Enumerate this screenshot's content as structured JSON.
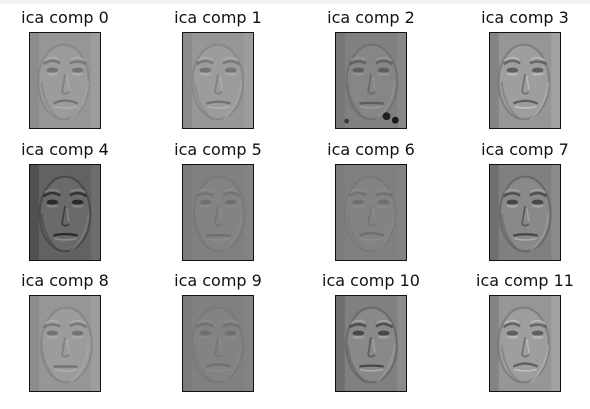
{
  "figure": {
    "panels": [
      {
        "title": "ica comp 0",
        "tone": "light",
        "contrast": "medium",
        "artifacts": "none",
        "face": "face-icon"
      },
      {
        "title": "ica comp 1",
        "tone": "light",
        "contrast": "medium",
        "artifacts": "none",
        "face": "face-icon"
      },
      {
        "title": "ica comp 2",
        "tone": "medium",
        "contrast": "medium",
        "artifacts": "dark-spots",
        "face": "face-icon"
      },
      {
        "title": "ica comp 3",
        "tone": "light",
        "contrast": "high",
        "artifacts": "none",
        "face": "face-icon"
      },
      {
        "title": "ica comp 4",
        "tone": "dark",
        "contrast": "high",
        "artifacts": "none",
        "face": "face-icon"
      },
      {
        "title": "ica comp 5",
        "tone": "medium",
        "contrast": "low",
        "artifacts": "none",
        "face": "face-icon"
      },
      {
        "title": "ica comp 6",
        "tone": "medium",
        "contrast": "low",
        "artifacts": "none",
        "face": "face-icon"
      },
      {
        "title": "ica comp 7",
        "tone": "medium",
        "contrast": "high",
        "artifacts": "none",
        "face": "face-icon"
      },
      {
        "title": "ica comp 8",
        "tone": "light",
        "contrast": "medium",
        "artifacts": "none",
        "face": "face-icon"
      },
      {
        "title": "ica comp 9",
        "tone": "medium",
        "contrast": "low",
        "artifacts": "none",
        "face": "face-icon"
      },
      {
        "title": "ica comp 10",
        "tone": "medium",
        "contrast": "high",
        "artifacts": "none",
        "face": "face-icon"
      },
      {
        "title": "ica comp 11",
        "tone": "light",
        "contrast": "high",
        "artifacts": "none",
        "face": "face-icon"
      }
    ]
  }
}
